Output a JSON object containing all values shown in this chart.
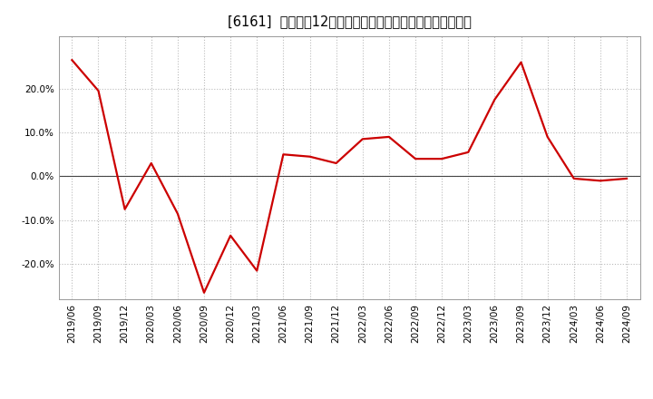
{
  "title": "[6161]  売上高だ12か月移動合計の対前年同期増減率の推移",
  "dates": [
    "2019/06",
    "2019/09",
    "2019/12",
    "2020/03",
    "2020/06",
    "2020/09",
    "2020/12",
    "2021/03",
    "2021/06",
    "2021/09",
    "2021/12",
    "2022/03",
    "2022/06",
    "2022/09",
    "2022/12",
    "2023/03",
    "2023/06",
    "2023/09",
    "2023/12",
    "2024/03",
    "2024/06",
    "2024/09"
  ],
  "values": [
    0.265,
    0.195,
    -0.075,
    0.03,
    -0.085,
    -0.265,
    -0.135,
    -0.215,
    0.05,
    0.045,
    0.03,
    0.085,
    0.09,
    0.04,
    0.04,
    0.055,
    0.175,
    0.26,
    0.09,
    -0.005,
    -0.01,
    -0.005
  ],
  "line_color": "#cc0000",
  "bg_color": "#ffffff",
  "plot_bg_color": "#ffffff",
  "grid_color": "#bbbbbb",
  "zero_line_color": "#444444",
  "ylim": [
    -0.28,
    0.32
  ],
  "yticks": [
    -0.2,
    -0.1,
    0.0,
    0.1,
    0.2
  ],
  "title_fontsize": 10.5,
  "tick_fontsize": 7.5
}
